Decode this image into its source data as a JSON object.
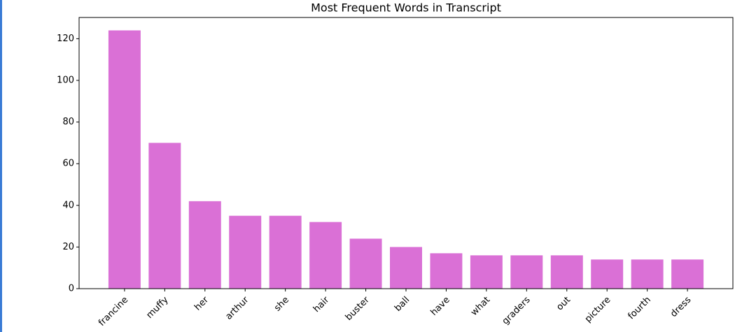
{
  "chart_data": {
    "type": "bar",
    "title": "Most Frequent Words in Transcript",
    "categories": [
      "francine",
      "muffy",
      "her",
      "arthur",
      "she",
      "hair",
      "buster",
      "ball",
      "have",
      "what",
      "graders",
      "out",
      "picture",
      "fourth",
      "dress"
    ],
    "values": [
      124,
      70,
      42,
      35,
      35,
      32,
      24,
      20,
      17,
      16,
      16,
      16,
      14,
      14,
      14
    ],
    "color": "orchid",
    "ylim": [
      0,
      130.2
    ],
    "yticks": [
      0,
      20,
      40,
      60,
      80,
      100,
      120
    ],
    "grid": false
  }
}
